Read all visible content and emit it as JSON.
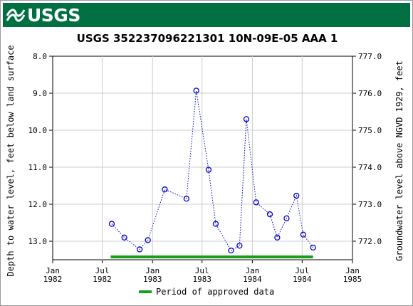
{
  "banner": {
    "agency": "USGS",
    "color": "#006f41"
  },
  "chart_data": {
    "type": "scatter",
    "title": "USGS 352237096221301 10N-09E-05 AAA 1",
    "ylabel_left": "Depth to water level, feet below land surface",
    "ylabel_right": "Groundwater level above NGVD 1929, feet",
    "ylim_left": [
      8.0,
      13.5
    ],
    "ylim_left_inverted": true,
    "y_left_ticks": [
      "8.0",
      "9.0",
      "10.0",
      "11.0",
      "12.0",
      "13.0"
    ],
    "y_right_ticks": [
      "777.0",
      "776.0",
      "775.0",
      "774.0",
      "773.0",
      "772.0"
    ],
    "x_ticks": [
      {
        "month": "Jan",
        "year": "1982",
        "date": "1982-01-01"
      },
      {
        "month": "Jul",
        "year": "1982",
        "date": "1982-07-01"
      },
      {
        "month": "Jan",
        "year": "1983",
        "date": "1983-01-01"
      },
      {
        "month": "Jul",
        "year": "1983",
        "date": "1983-07-01"
      },
      {
        "month": "Jan",
        "year": "1984",
        "date": "1984-01-01"
      },
      {
        "month": "Jul",
        "year": "1984",
        "date": "1984-07-01"
      },
      {
        "month": "Jan",
        "year": "1985",
        "date": "1985-01-01"
      }
    ],
    "xlim": [
      "1982-01-01",
      "1985-01-01"
    ],
    "grid": true,
    "series": [
      {
        "color": "#0000cc",
        "marker": "circle",
        "line": "dotted",
        "points": [
          {
            "x": "1982-08-05",
            "y": 12.53
          },
          {
            "x": "1982-09-20",
            "y": 12.9
          },
          {
            "x": "1982-11-15",
            "y": 13.22
          },
          {
            "x": "1982-12-15",
            "y": 12.97
          },
          {
            "x": "1983-02-15",
            "y": 11.6
          },
          {
            "x": "1983-05-05",
            "y": 11.85
          },
          {
            "x": "1983-06-10",
            "y": 8.93
          },
          {
            "x": "1983-07-25",
            "y": 11.07
          },
          {
            "x": "1983-08-20",
            "y": 12.53
          },
          {
            "x": "1983-10-15",
            "y": 13.25
          },
          {
            "x": "1983-11-15",
            "y": 13.12
          },
          {
            "x": "1983-12-10",
            "y": 9.7
          },
          {
            "x": "1984-01-15",
            "y": 11.95
          },
          {
            "x": "1984-03-05",
            "y": 12.27
          },
          {
            "x": "1984-04-01",
            "y": 12.9
          },
          {
            "x": "1984-05-05",
            "y": 12.38
          },
          {
            "x": "1984-06-10",
            "y": 11.77
          },
          {
            "x": "1984-07-05",
            "y": 12.82
          },
          {
            "x": "1984-08-10",
            "y": 13.17
          }
        ]
      }
    ],
    "approved_period": {
      "start": "1982-08-01",
      "end": "1984-08-10",
      "color": "#1a9e1a"
    },
    "legend": {
      "label": "Period of approved data",
      "placement": "bottom"
    }
  }
}
